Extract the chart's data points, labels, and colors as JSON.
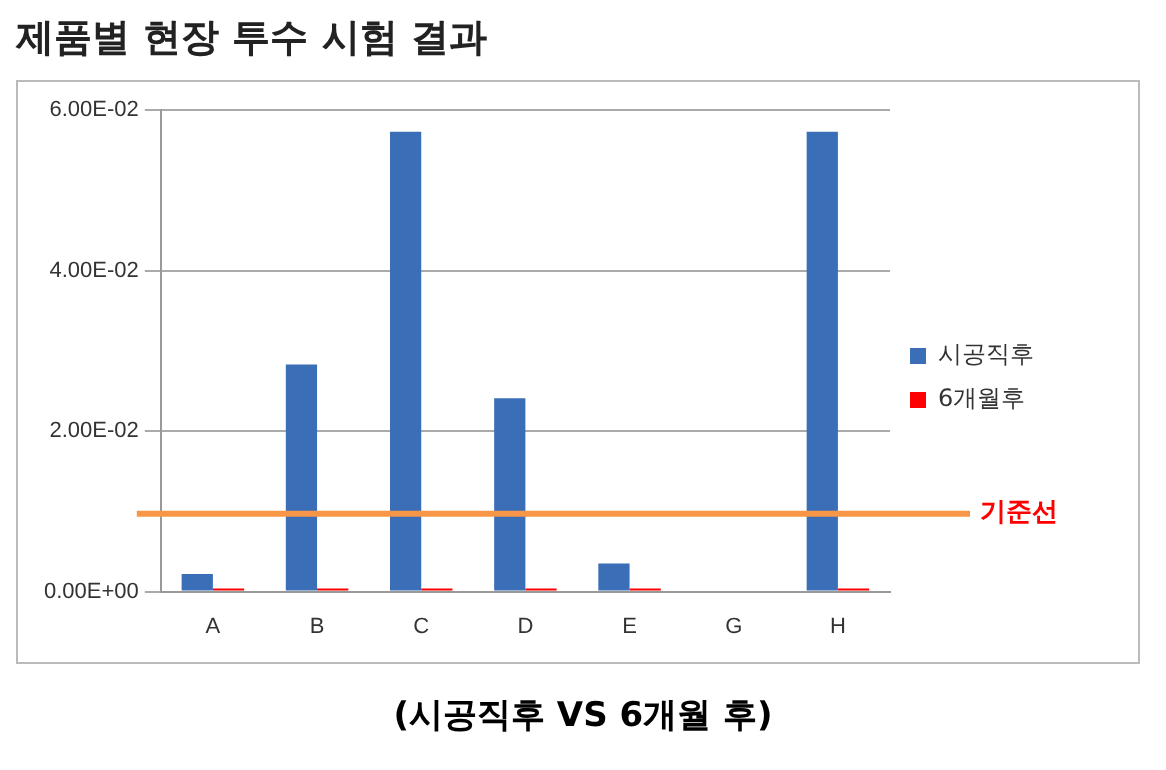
{
  "chart_data": {
    "type": "bar",
    "title": "제품별 현장 투수 시험 결과",
    "categories": [
      "A",
      "B",
      "C",
      "D",
      "E",
      "G",
      "H"
    ],
    "series": [
      {
        "name": "시공직후",
        "color": "#3a6fb8",
        "values": [
          0.0022,
          0.0283,
          0.0573,
          0.0241,
          0.0035,
          null,
          0.0573
        ]
      },
      {
        "name": "6개월후",
        "color": "#ff0000",
        "values": [
          0.0004,
          0.0004,
          0.0004,
          0.0004,
          0.0004,
          null,
          0.0004
        ]
      }
    ],
    "ylim": [
      0,
      0.06
    ],
    "yticks": [
      {
        "value": 0,
        "label": "0.00E+00"
      },
      {
        "value": 0.02,
        "label": "2.00E-02"
      },
      {
        "value": 0.04,
        "label": "4.00E-02"
      },
      {
        "value": 0.06,
        "label": "6.00E-02"
      }
    ],
    "grid": "y",
    "legend": "right",
    "ref_lines": [
      {
        "axis": "y",
        "value": 0.0097,
        "label": "기준선",
        "color": "#f79646"
      }
    ],
    "annotations": [
      "(시공직후 VS 6개월 후)"
    ]
  }
}
